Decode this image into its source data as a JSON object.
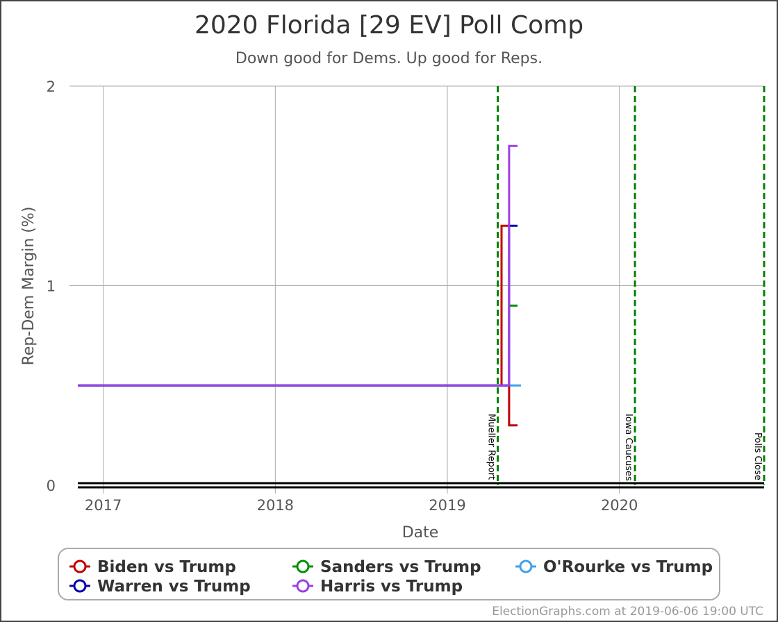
{
  "chart_data": {
    "type": "line",
    "title": "2020 Florida [29 EV] Poll Comp",
    "subtitle": "Down good for Dems. Up good for Reps.",
    "xlabel": "Date",
    "ylabel": "Rep-Dem Margin (%)",
    "xlim": [
      "2016-11-08",
      "2020-11-03"
    ],
    "ylim": [
      0,
      2
    ],
    "x_ticks": [
      {
        "date": "2017-01-01",
        "label": "2017"
      },
      {
        "date": "2018-01-01",
        "label": "2018"
      },
      {
        "date": "2019-01-01",
        "label": "2019"
      },
      {
        "date": "2020-01-01",
        "label": "2020"
      }
    ],
    "y_ticks": [
      {
        "value": 0,
        "label": "0"
      },
      {
        "value": 1,
        "label": "1"
      },
      {
        "value": 2,
        "label": "2"
      }
    ],
    "grid": true,
    "legend_position": "bottom",
    "series": [
      {
        "name": "Biden vs Trump",
        "color": "#c00000",
        "points": [
          [
            "2016-11-08",
            0.5
          ],
          [
            "2019-04-26",
            0.5
          ],
          [
            "2019-04-26",
            1.3
          ],
          [
            "2019-05-12",
            1.3
          ],
          [
            "2019-05-12",
            0.3
          ],
          [
            "2019-05-30",
            0.3
          ]
        ]
      },
      {
        "name": "Sanders vs Trump",
        "color": "#009000",
        "points": [
          [
            "2016-11-08",
            0.5
          ],
          [
            "2019-05-12",
            0.5
          ],
          [
            "2019-05-12",
            0.9
          ],
          [
            "2019-05-30",
            0.9
          ]
        ]
      },
      {
        "name": "O'Rourke vs Trump",
        "color": "#3fa0e8",
        "points": [
          [
            "2016-11-08",
            0.5
          ],
          [
            "2019-06-06",
            0.5
          ]
        ]
      },
      {
        "name": "Warren vs Trump",
        "color": "#0000b0",
        "points": [
          [
            "2016-11-08",
            0.5
          ],
          [
            "2019-05-12",
            0.5
          ],
          [
            "2019-05-12",
            1.3
          ],
          [
            "2019-05-30",
            1.3
          ]
        ]
      },
      {
        "name": "Harris vs Trump",
        "color": "#9b3fe8",
        "points": [
          [
            "2016-11-08",
            0.5
          ],
          [
            "2019-05-12",
            0.5
          ],
          [
            "2019-05-12",
            1.7
          ],
          [
            "2019-05-30",
            1.7
          ]
        ]
      }
    ],
    "events": [
      {
        "date": "2019-04-18",
        "label": "Mueller Report"
      },
      {
        "date": "2020-02-03",
        "label": "Iowa Caucuses"
      },
      {
        "date": "2020-11-03",
        "label": "Polls Close"
      }
    ]
  },
  "footer": {
    "text": "ElectionGraphs.com at 2019-06-06 19:00 UTC"
  },
  "colors": {
    "grid": "#aaaaaa",
    "axis": "#000000",
    "event": "#008000",
    "legend_border": "#aaaaaa"
  }
}
